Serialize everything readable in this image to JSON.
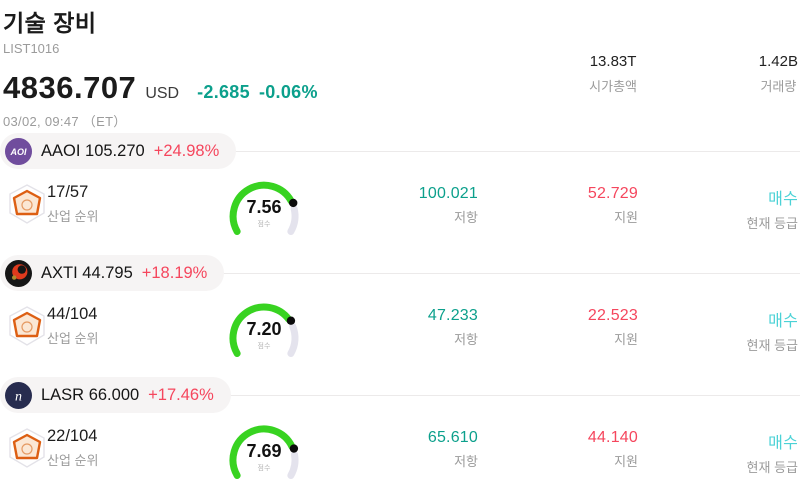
{
  "colors": {
    "teal": "#0ca08c",
    "red": "#f5465d",
    "cyan": "#4bd2d6",
    "gauge-green": "#38d321",
    "gauge-track": "#e4e3ed",
    "text-dark": "#1b1b1b",
    "text-gray": "#9b9b9b",
    "pill-bg": "#f6f4f4",
    "aaoi-logo": "#7b55a9",
    "lasr-logo": "#272c4f",
    "rank-orange": "#dd5f13"
  },
  "header": {
    "title": "기술 장비",
    "list_id": "LIST1016",
    "price": "4836.707",
    "currency": "USD",
    "change_abs": "-2.685",
    "change_pct": "-0.06%",
    "datetime": "03/02, 09:47 （ET）",
    "market_cap_value": "13.83T",
    "market_cap_label": "시가총액",
    "volume_value": "1.42B",
    "volume_label": "거래량"
  },
  "labels": {
    "rank": "산업 순위",
    "score": "점수",
    "resistance": "저항",
    "support": "지원",
    "rating": "현재 등급"
  },
  "stocks": [
    {
      "ticker": "AAOI",
      "price": "105.270",
      "change": "+24.98%",
      "logo_text": "AOI",
      "rank": "17/57",
      "score": 7.56,
      "score_display": "7.56",
      "resistance": "100.021",
      "support": "52.729",
      "rating": "매수"
    },
    {
      "ticker": "AXTI",
      "price": "44.795",
      "change": "+18.19%",
      "rank": "44/104",
      "score": 7.2,
      "score_display": "7.20",
      "resistance": "47.233",
      "support": "22.523",
      "rating": "매수"
    },
    {
      "ticker": "LASR",
      "price": "66.000",
      "change": "+17.46%",
      "logo_text": "n",
      "rank": "22/104",
      "score": 7.69,
      "score_display": "7.69",
      "resistance": "65.610",
      "support": "44.140",
      "rating": "매수"
    }
  ]
}
